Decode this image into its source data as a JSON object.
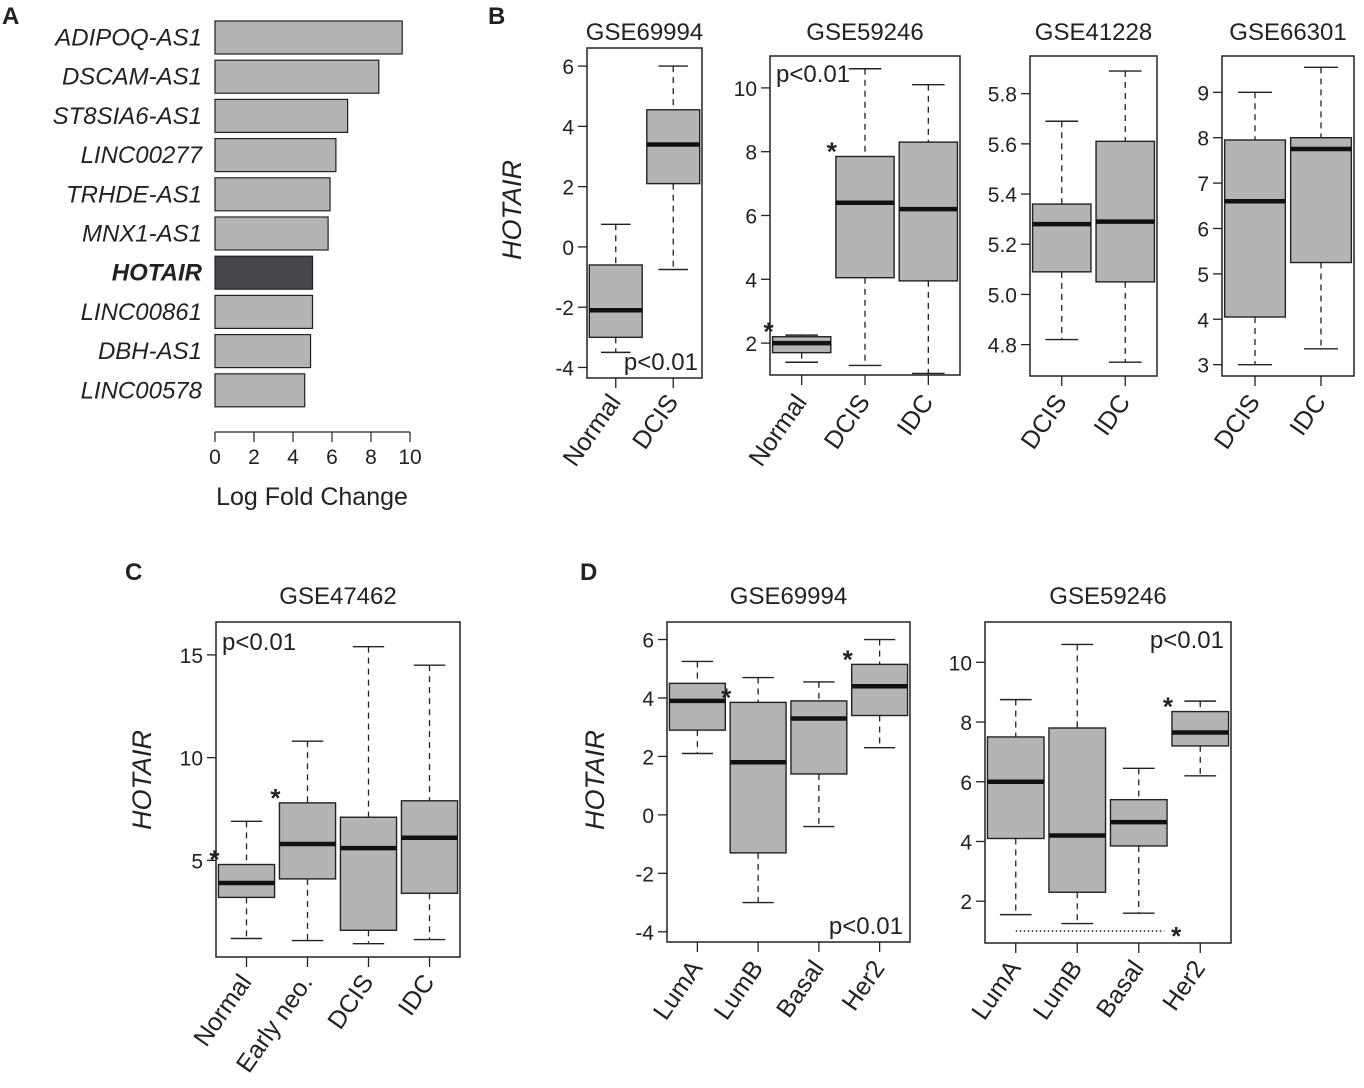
{
  "figure": {
    "panel_letters": [
      "A",
      "B",
      "C",
      "D"
    ]
  },
  "chart_data": [
    {
      "id": "A",
      "type": "bar",
      "orientation": "horizontal",
      "title": "",
      "xlabel": "Log Fold Change",
      "xlim": [
        0,
        10
      ],
      "xticks": [
        "0",
        "2",
        "4",
        "6",
        "8",
        "10"
      ],
      "categories": [
        "ADIPOQ-AS1",
        "DSCAM-AS1",
        "ST8SIA6-AS1",
        "LINC00277",
        "TRHDE-AS1",
        "MNX1-AS1",
        "HOTAIR",
        "LINC00861",
        "DBH-AS1",
        "LINC00578"
      ],
      "values": [
        9.6,
        8.4,
        6.8,
        6.2,
        5.9,
        5.8,
        5.0,
        5.0,
        4.9,
        4.6
      ],
      "highlight": "HOTAIR",
      "bar_color": "#b4b4b4",
      "highlight_color": "#47474b"
    },
    {
      "id": "B1",
      "type": "box",
      "title": "GSE69994",
      "ylabel": "HOTAIR",
      "ylim": [
        -4.35,
        6.6
      ],
      "yticks": [
        "-4",
        "-2",
        "0",
        "2",
        "4",
        "6"
      ],
      "categories": [
        "Normal",
        "DCIS"
      ],
      "boxes": [
        {
          "min": -3.5,
          "q1": -3.0,
          "median": -2.1,
          "q3": -0.6,
          "max": 0.75
        },
        {
          "min": -0.75,
          "q1": 2.1,
          "median": 3.4,
          "q3": 4.55,
          "max": 6.0
        }
      ],
      "pvalue": "p<0.01",
      "pvalue_pos": "bottom-right",
      "stars": []
    },
    {
      "id": "B2",
      "type": "box",
      "title": "GSE59246",
      "ylabel": "",
      "ylim": [
        1.0,
        11.0
      ],
      "yticks": [
        "2",
        "4",
        "6",
        "8",
        "10"
      ],
      "categories": [
        "Normal",
        "DCIS",
        "IDC"
      ],
      "boxes": [
        {
          "min": 1.4,
          "q1": 1.7,
          "median": 2.0,
          "q3": 2.2,
          "max": 2.25
        },
        {
          "min": 1.3,
          "q1": 4.05,
          "median": 6.4,
          "q3": 7.85,
          "max": 10.6
        },
        {
          "min": 1.05,
          "q1": 3.95,
          "median": 6.2,
          "q3": 8.3,
          "max": 10.1
        }
      ],
      "pvalue": "p<0.01",
      "pvalue_pos": "top-left",
      "stars": [
        {
          "box": 0,
          "text": "*"
        },
        {
          "box": 1,
          "text": "*"
        }
      ]
    },
    {
      "id": "B3",
      "type": "box",
      "title": "GSE41228",
      "ylabel": "",
      "ylim": [
        4.675,
        5.95
      ],
      "yticks": [
        "4.8",
        "5.0",
        "5.2",
        "5.4",
        "5.6",
        "5.8"
      ],
      "categories": [
        "DCIS",
        "IDC"
      ],
      "boxes": [
        {
          "min": 4.82,
          "q1": 5.09,
          "median": 5.28,
          "q3": 5.36,
          "max": 5.69
        },
        {
          "min": 4.73,
          "q1": 5.05,
          "median": 5.29,
          "q3": 5.61,
          "max": 5.89
        }
      ],
      "pvalue": "",
      "stars": []
    },
    {
      "id": "B4",
      "type": "box",
      "title": "GSE66301",
      "ylabel": "",
      "ylim": [
        2.75,
        9.8
      ],
      "yticks": [
        "3",
        "4",
        "5",
        "6",
        "7",
        "8",
        "9"
      ],
      "categories": [
        "DCIS",
        "IDC"
      ],
      "boxes": [
        {
          "min": 3.0,
          "q1": 4.05,
          "median": 6.6,
          "q3": 7.95,
          "max": 9.0
        },
        {
          "min": 3.35,
          "q1": 5.25,
          "median": 7.75,
          "q3": 8.0,
          "max": 9.55
        }
      ],
      "pvalue": "",
      "stars": []
    },
    {
      "id": "C",
      "type": "box",
      "title": "GSE47462",
      "ylabel": "HOTAIR",
      "ylim": [
        0.3,
        16.6
      ],
      "yticks": [
        "5",
        "10",
        "15"
      ],
      "categories": [
        "Normal",
        "Early neo.",
        "DCIS",
        "IDC"
      ],
      "boxes": [
        {
          "min": 1.2,
          "q1": 3.2,
          "median": 3.9,
          "q3": 4.8,
          "max": 6.9
        },
        {
          "min": 1.1,
          "q1": 4.1,
          "median": 5.8,
          "q3": 7.8,
          "max": 10.8
        },
        {
          "min": 0.95,
          "q1": 1.6,
          "median": 5.6,
          "q3": 7.1,
          "max": 15.4
        },
        {
          "min": 1.15,
          "q1": 3.4,
          "median": 6.1,
          "q3": 7.9,
          "max": 14.5
        }
      ],
      "pvalue": "p<0.01",
      "pvalue_pos": "top-left",
      "stars": [
        {
          "box": 0,
          "text": "*"
        },
        {
          "box": 1,
          "text": "*"
        }
      ]
    },
    {
      "id": "D1",
      "type": "box",
      "title": "GSE69994",
      "ylabel": "HOTAIR",
      "ylim": [
        -4.35,
        6.6
      ],
      "yticks": [
        "-4",
        "-2",
        "0",
        "2",
        "4",
        "6"
      ],
      "categories": [
        "LumA",
        "LumB",
        "Basal",
        "Her2"
      ],
      "boxes": [
        {
          "min": 2.1,
          "q1": 2.9,
          "median": 3.9,
          "q3": 4.5,
          "max": 5.25
        },
        {
          "min": -3.0,
          "q1": -1.3,
          "median": 1.8,
          "q3": 3.85,
          "max": 4.7
        },
        {
          "min": -0.4,
          "q1": 1.4,
          "median": 3.3,
          "q3": 3.9,
          "max": 4.55
        },
        {
          "min": 2.3,
          "q1": 3.4,
          "median": 4.4,
          "q3": 5.15,
          "max": 6.0
        }
      ],
      "pvalue": "p<0.01",
      "pvalue_pos": "bottom-right",
      "stars": [
        {
          "box": 1,
          "text": "*"
        },
        {
          "box": 3,
          "text": "*"
        }
      ]
    },
    {
      "id": "D2",
      "type": "box",
      "title": "GSE59246",
      "ylabel": "",
      "ylim": [
        0.6,
        11.35
      ],
      "yticks": [
        "2",
        "4",
        "6",
        "8",
        "10"
      ],
      "categories": [
        "LumA",
        "LumB",
        "Basal",
        "Her2"
      ],
      "boxes": [
        {
          "min": 1.55,
          "q1": 4.1,
          "median": 6.0,
          "q3": 7.5,
          "max": 8.75
        },
        {
          "min": 1.25,
          "q1": 2.3,
          "median": 4.2,
          "q3": 7.8,
          "max": 10.6
        },
        {
          "min": 1.6,
          "q1": 3.85,
          "median": 4.65,
          "q3": 5.4,
          "max": 6.45
        },
        {
          "min": 6.2,
          "q1": 7.2,
          "median": 7.65,
          "q3": 8.35,
          "max": 8.7
        }
      ],
      "pvalue": "p<0.01",
      "pvalue_pos": "top-right",
      "stars": [
        {
          "box": 3,
          "text": "*"
        }
      ],
      "dotted_line": {
        "from_box": 0,
        "to_box": 2,
        "y": 1.0,
        "star": "*"
      }
    }
  ]
}
